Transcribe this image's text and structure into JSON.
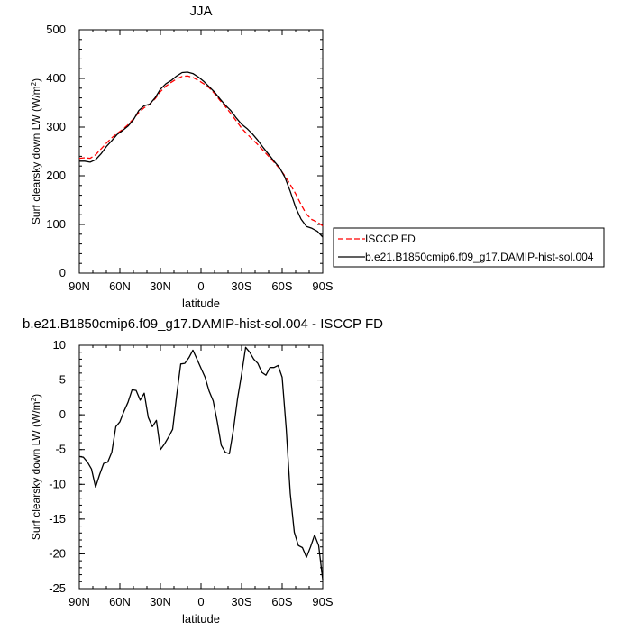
{
  "chart_data": [
    {
      "type": "line",
      "title": "JJA",
      "xlabel": "latitude",
      "ylabel": "Surf clearsky down LW (W/m",
      "ylabel_sup": "2",
      "ylabel_end": ")",
      "xlim": [
        90,
        -90
      ],
      "ylim": [
        0,
        500
      ],
      "xticks": [
        90,
        60,
        30,
        0,
        -30,
        -60,
        -90
      ],
      "xtick_labels": [
        "90N",
        "60N",
        "30N",
        "0",
        "30S",
        "60S",
        "90S"
      ],
      "yticks": [
        0,
        100,
        200,
        300,
        400,
        500
      ],
      "ytick_labels": [
        "0",
        "100",
        "200",
        "300",
        "400",
        "500"
      ],
      "legend": {
        "position": "right",
        "entries": [
          {
            "label": "ISCCP FD",
            "color": "#ff0000",
            "dash": "dashed"
          },
          {
            "label": "b.e21.B1850cmip6.f09_g17.DAMIP-hist-sol.004",
            "color": "#000000",
            "dash": "solid"
          }
        ]
      },
      "series": [
        {
          "name": "ISCCP FD",
          "color": "#ff0000",
          "dash": "dashed",
          "x": [
            90,
            86,
            82,
            78,
            74,
            70,
            66,
            62,
            58,
            54,
            50,
            46,
            42,
            38,
            34,
            30,
            26,
            22,
            18,
            14,
            10,
            6,
            2,
            -2,
            -6,
            -10,
            -14,
            -18,
            -22,
            -26,
            -30,
            -34,
            -38,
            -42,
            -46,
            -50,
            -54,
            -58,
            -62,
            -66,
            -70,
            -74,
            -78,
            -82,
            -86,
            -90
          ],
          "y": [
            236,
            237,
            236,
            243,
            255,
            267,
            278,
            287,
            295,
            305,
            317,
            330,
            340,
            347,
            358,
            373,
            384,
            392,
            399,
            404,
            405,
            402,
            396,
            389,
            381,
            369,
            355,
            342,
            328,
            313,
            298,
            286,
            275,
            264,
            252,
            240,
            228,
            215,
            200,
            182,
            163,
            141,
            121,
            110,
            105,
            97
          ]
        },
        {
          "name": "b.e21.B1850cmip6.f09_g17.DAMIP-hist-sol.004",
          "color": "#000000",
          "dash": "solid",
          "x": [
            90,
            86,
            82,
            78,
            74,
            70,
            66,
            62,
            58,
            54,
            50,
            46,
            42,
            38,
            34,
            30,
            26,
            22,
            18,
            14,
            10,
            6,
            2,
            -2,
            -6,
            -10,
            -14,
            -18,
            -22,
            -26,
            -30,
            -34,
            -38,
            -42,
            -46,
            -50,
            -54,
            -58,
            -62,
            -66,
            -70,
            -74,
            -78,
            -82,
            -86,
            -90
          ],
          "y": [
            230,
            230,
            228,
            233,
            245,
            260,
            272,
            285,
            293,
            302,
            315,
            334,
            344,
            347,
            360,
            378,
            389,
            396,
            405,
            412,
            413,
            410,
            403,
            394,
            383,
            372,
            358,
            345,
            334,
            319,
            306,
            297,
            286,
            273,
            258,
            244,
            230,
            217,
            197,
            168,
            135,
            111,
            96,
            92,
            86,
            74
          ]
        }
      ]
    },
    {
      "type": "line",
      "title": "b.e21.B1850cmip6.f09_g17.DAMIP-hist-sol.004 - ISCCP FD",
      "xlabel": "latitude",
      "ylabel": "Surf clearsky down LW (W/m",
      "ylabel_sup": "2",
      "ylabel_end": ")",
      "xlim": [
        90,
        -90
      ],
      "ylim": [
        -25,
        10
      ],
      "xticks": [
        90,
        60,
        30,
        0,
        -30,
        -60,
        -90
      ],
      "xtick_labels": [
        "90N",
        "60N",
        "30N",
        "0",
        "30S",
        "60S",
        "90S"
      ],
      "yticks": [
        -25,
        -20,
        -15,
        -10,
        -5,
        0,
        5,
        10
      ],
      "ytick_labels": [
        "-25",
        "-20",
        "-15",
        "-10",
        "-5",
        "0",
        "5",
        "10"
      ],
      "series": [
        {
          "color": "#000000",
          "dash": "solid",
          "x": [
            90,
            87,
            84,
            81,
            78,
            75,
            72,
            69,
            66,
            63,
            60,
            57,
            54,
            51,
            48,
            45,
            42,
            39,
            36,
            33,
            30,
            27,
            24,
            21,
            18,
            15,
            12,
            9,
            6,
            3,
            0,
            -3,
            -6,
            -9,
            -12,
            -15,
            -18,
            -21,
            -24,
            -27,
            -30,
            -33,
            -36,
            -39,
            -42,
            -45,
            -48,
            -51,
            -54,
            -57,
            -60,
            -63,
            -66,
            -69,
            -72,
            -75,
            -78,
            -81,
            -84,
            -87,
            -90
          ],
          "y": [
            -6.0,
            -6.1,
            -6.8,
            -7.8,
            -10.4,
            -8.6,
            -7.0,
            -6.8,
            -5.4,
            -1.7,
            -1.0,
            0.5,
            1.8,
            3.6,
            3.5,
            2.1,
            3.1,
            -0.4,
            -1.7,
            -0.8,
            -5.0,
            -4.2,
            -3.2,
            -2.1,
            2.8,
            7.3,
            7.4,
            8.2,
            9.3,
            8.0,
            6.7,
            5.4,
            3.4,
            2.0,
            -1.0,
            -4.4,
            -5.4,
            -5.6,
            -2.1,
            2.3,
            5.8,
            9.7,
            9.0,
            8.0,
            7.4,
            6.1,
            5.7,
            6.8,
            6.8,
            7.1,
            5.4,
            -2.0,
            -11.3,
            -16.9,
            -18.8,
            -19.1,
            -20.5,
            -19.0,
            -17.3,
            -18.8,
            -23.7
          ]
        }
      ]
    }
  ]
}
